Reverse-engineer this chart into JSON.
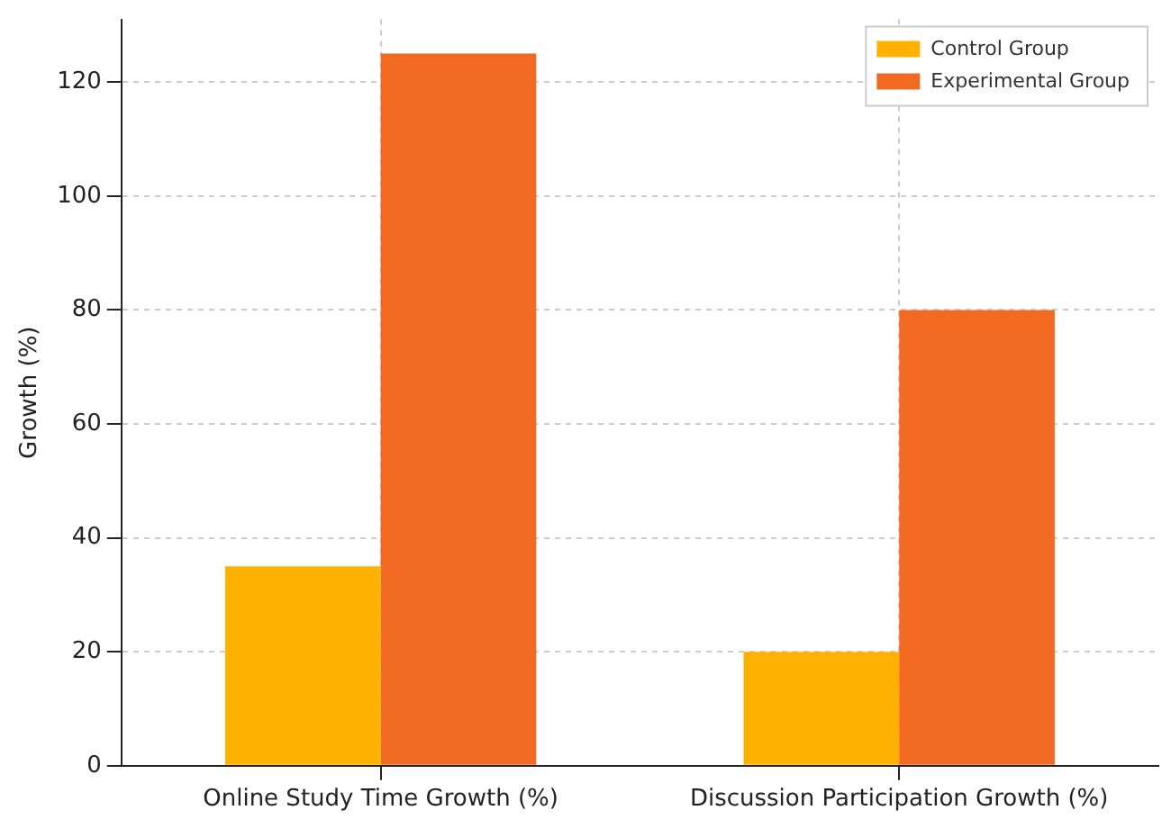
{
  "chart_data": {
    "type": "bar",
    "ylabel": "Growth (%)",
    "categories": [
      "Online Study Time Growth (%)",
      "Discussion Participation Growth (%)"
    ],
    "series": [
      {
        "name": "Control Group",
        "color": "#ffb000",
        "values": [
          35,
          20
        ]
      },
      {
        "name": "Experimental Group",
        "color": "#f26a21",
        "values": [
          125,
          80
        ]
      }
    ],
    "ylim": [
      0,
      131
    ],
    "yticks": [
      0,
      20,
      40,
      60,
      80,
      100,
      120
    ],
    "grid": true,
    "legend": "top right"
  }
}
